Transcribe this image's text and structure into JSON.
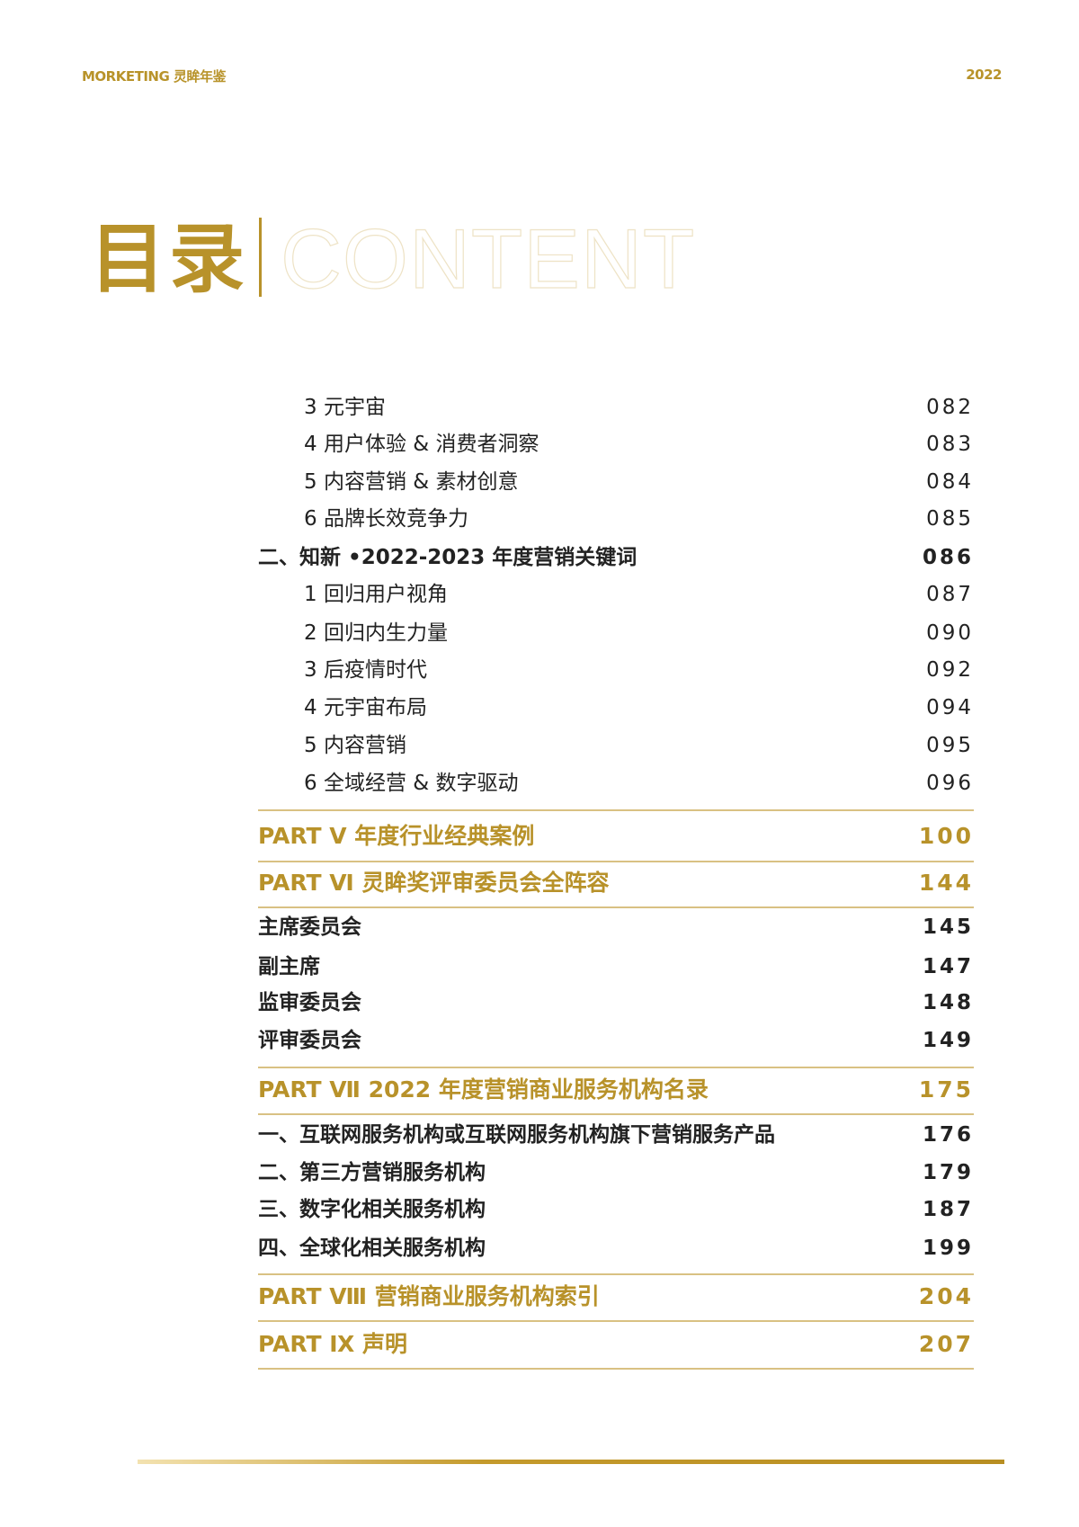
{
  "header": {
    "brand": "MORKETING 灵眸年鉴",
    "year": "2022"
  },
  "title": {
    "cn": "目录",
    "en": "CONTENT"
  },
  "colors": {
    "accent": "#b8922a",
    "rule": "#d9c183",
    "text": "#222222"
  },
  "toc": [
    {
      "type": "sub",
      "label": "3 元宇宙",
      "page": "082"
    },
    {
      "type": "sub",
      "label": "4 用户体验 & 消费者洞察",
      "page": "083"
    },
    {
      "type": "sub",
      "label": "5 内容营销 & 素材创意",
      "page": "084"
    },
    {
      "type": "sub",
      "label": "6 品牌长效竞争力",
      "page": "085"
    },
    {
      "type": "main",
      "label": "二、知新 •2022-2023 年度营销关键词",
      "page": "086"
    },
    {
      "type": "sub",
      "label": "1 回归用户视角",
      "page": "087"
    },
    {
      "type": "sub",
      "label": "2 回归内生力量",
      "page": "090"
    },
    {
      "type": "sub",
      "label": "3 后疫情时代",
      "page": "092"
    },
    {
      "type": "sub",
      "label": "4 元宇宙布局",
      "page": "094"
    },
    {
      "type": "sub",
      "label": "5 内容营销",
      "page": "095"
    },
    {
      "type": "sub",
      "label": "6 全域经营 & 数字驱动",
      "page": "096"
    },
    {
      "type": "part",
      "label": "PART Ⅴ  年度行业经典案例",
      "page": "100"
    },
    {
      "type": "part",
      "label": "PART Ⅵ  灵眸奖评审委员会全阵容",
      "page": "144"
    },
    {
      "type": "main",
      "label": "主席委员会",
      "page": "145"
    },
    {
      "type": "main",
      "label": "副主席",
      "page": "147"
    },
    {
      "type": "main",
      "label": "监审委员会",
      "page": "148"
    },
    {
      "type": "main",
      "label": "评审委员会",
      "page": "149"
    },
    {
      "type": "part",
      "label": "PART Ⅶ  2022 年度营销商业服务机构名录",
      "page": "175"
    },
    {
      "type": "main",
      "label": "一、互联网服务机构或互联网服务机构旗下营销服务产品",
      "page": "176"
    },
    {
      "type": "main",
      "label": "二、第三方营销服务机构",
      "page": "179"
    },
    {
      "type": "main",
      "label": "三、数字化相关服务机构",
      "page": "187"
    },
    {
      "type": "main",
      "label": "四、全球化相关服务机构",
      "page": "199"
    },
    {
      "type": "part",
      "label": "PART Ⅷ  营销商业服务机构索引",
      "page": "204"
    },
    {
      "type": "part",
      "label": "PART Ⅸ  声明",
      "page": "207"
    }
  ]
}
